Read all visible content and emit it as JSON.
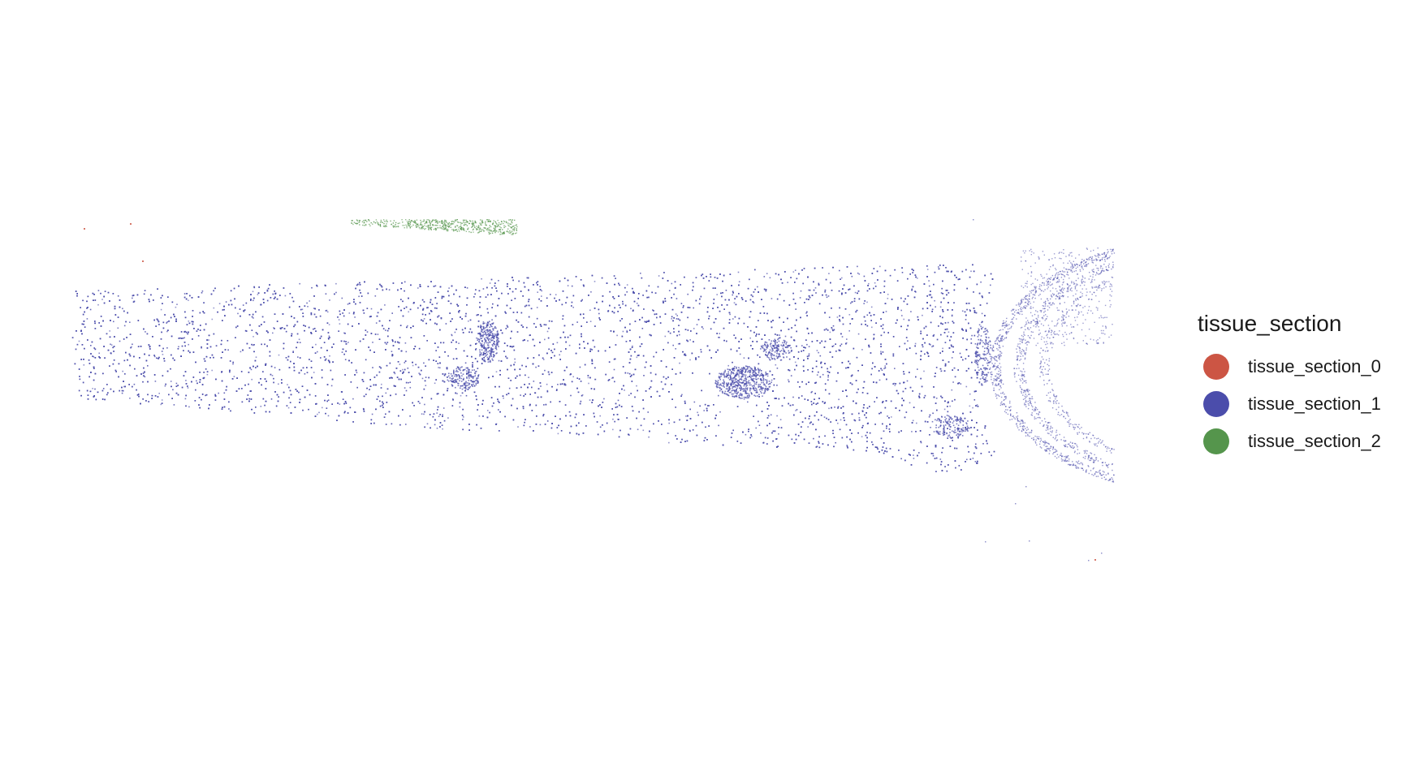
{
  "chart_data": {
    "type": "scatter",
    "title": "",
    "xlabel": "",
    "ylabel": "",
    "axes_visible": false,
    "grid": false,
    "legend_position": "right",
    "legend": {
      "title": "tissue_section",
      "entries": [
        {
          "label": "tissue_section_0",
          "color": "#cc5544"
        },
        {
          "label": "tissue_section_1",
          "color": "#4b4dab"
        },
        {
          "label": "tissue_section_2",
          "color": "#55954c"
        }
      ]
    },
    "series": [
      {
        "name": "tissue_section_0",
        "color": "#cc5544"
      },
      {
        "name": "tissue_section_1",
        "color": "#4b4dab"
      },
      {
        "name": "tissue_section_2",
        "color": "#55954c"
      }
    ]
  }
}
